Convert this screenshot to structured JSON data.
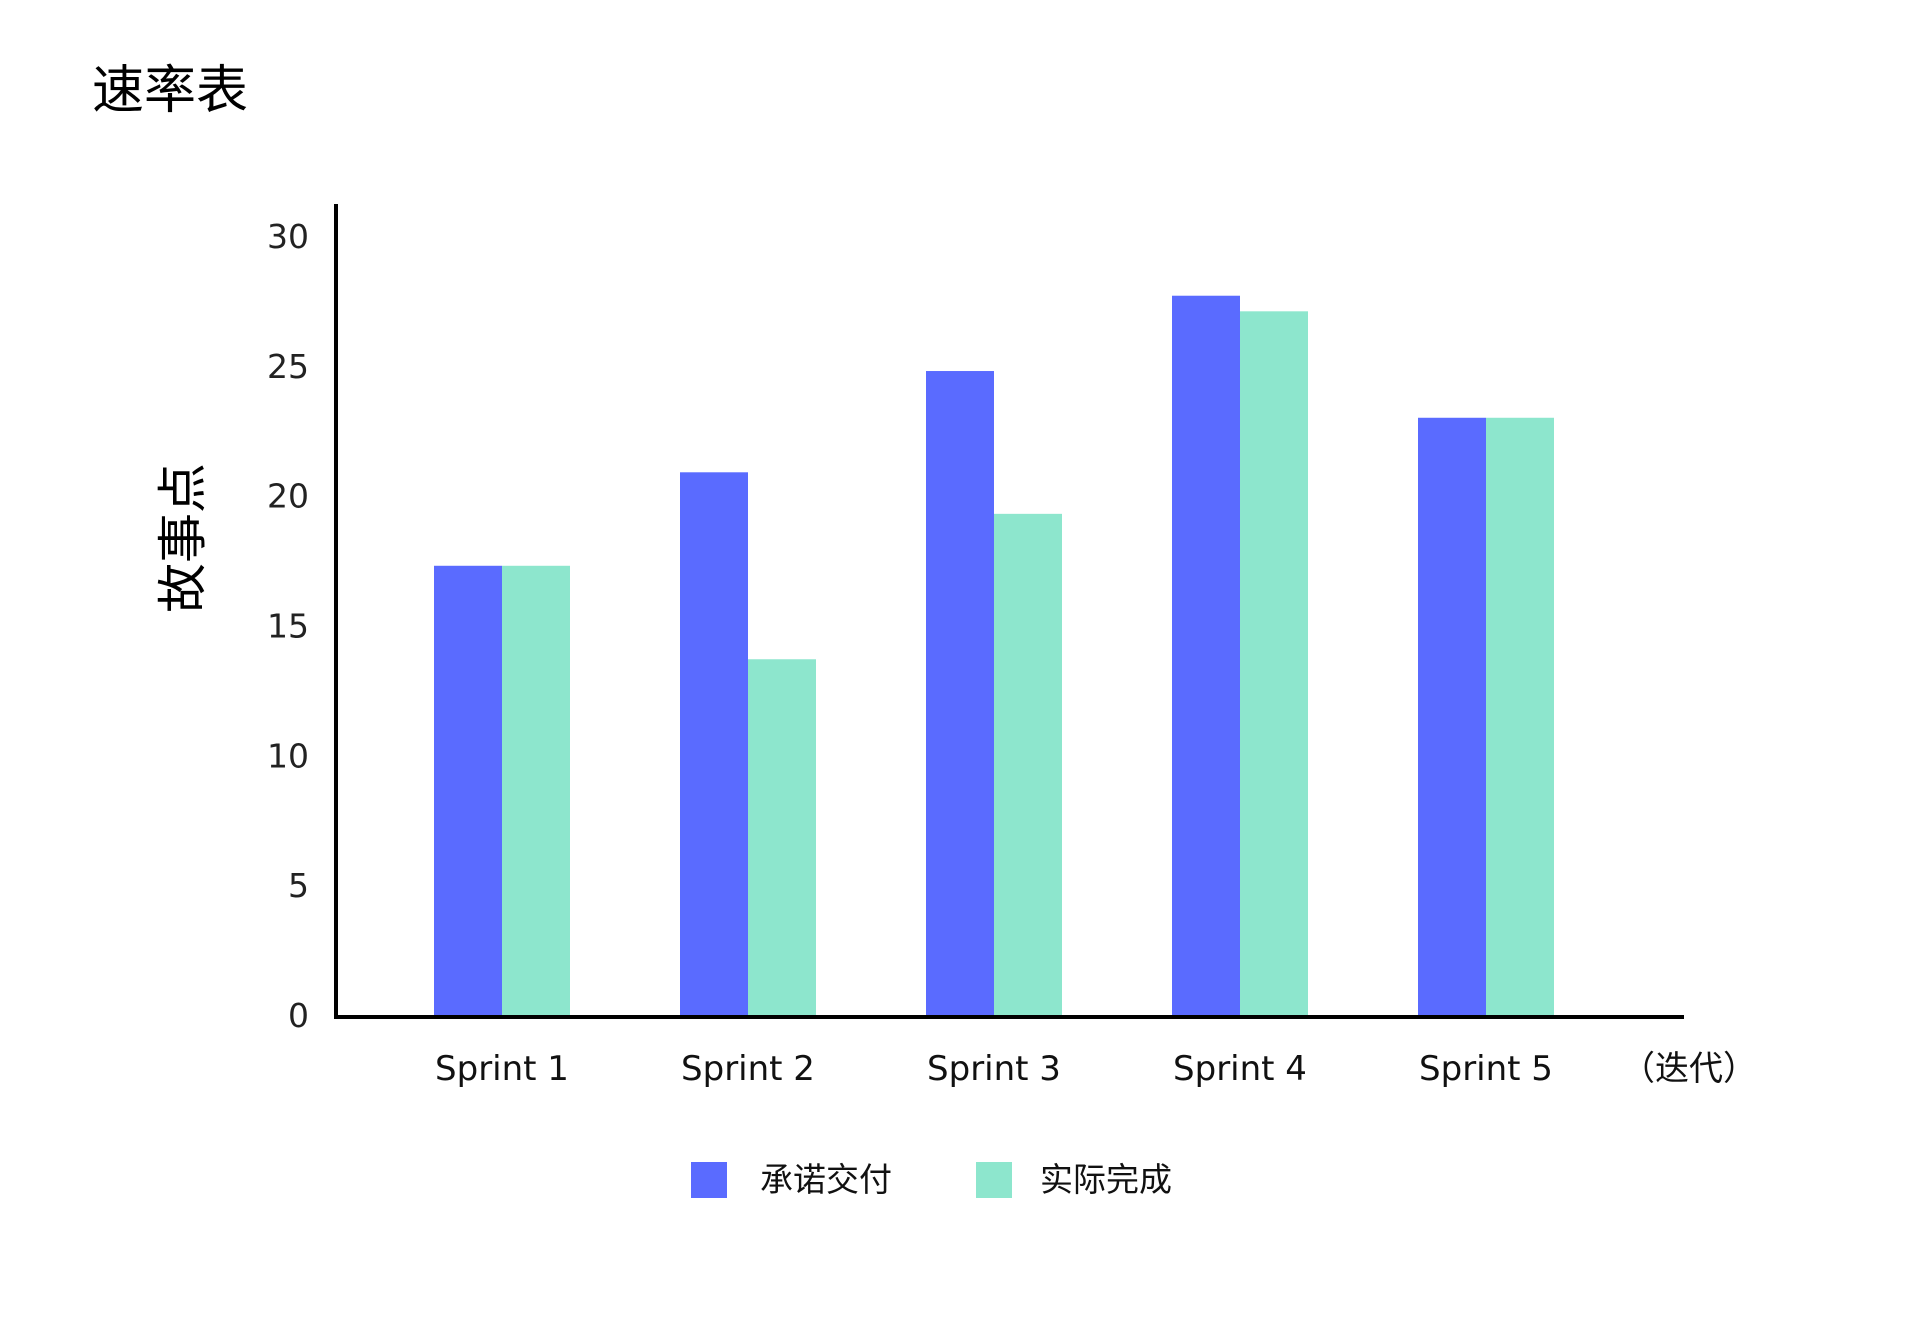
{
  "colors": {
    "committed": "#5A6BFF",
    "completed": "#8DE6CD",
    "axis": "#000000"
  },
  "chart_data": {
    "type": "bar",
    "title": "速率表",
    "ylabel": "故事点",
    "xlabel": "（迭代）",
    "ylim": [
      0,
      30
    ],
    "yticks": [
      0,
      5,
      10,
      15,
      20,
      25,
      30
    ],
    "grid": false,
    "legend_position": "bottom-center",
    "categories": [
      "Sprint 1",
      "Sprint 2",
      "Sprint 3",
      "Sprint 4",
      "Sprint 5"
    ],
    "series": [
      {
        "name": "承诺交付",
        "color": "#5A6BFF",
        "values": [
          17.3,
          20.9,
          24.8,
          27.7,
          23.0
        ]
      },
      {
        "name": "实际完成",
        "color": "#8DE6CD",
        "values": [
          17.3,
          13.7,
          19.3,
          27.1,
          23.0
        ]
      }
    ]
  }
}
